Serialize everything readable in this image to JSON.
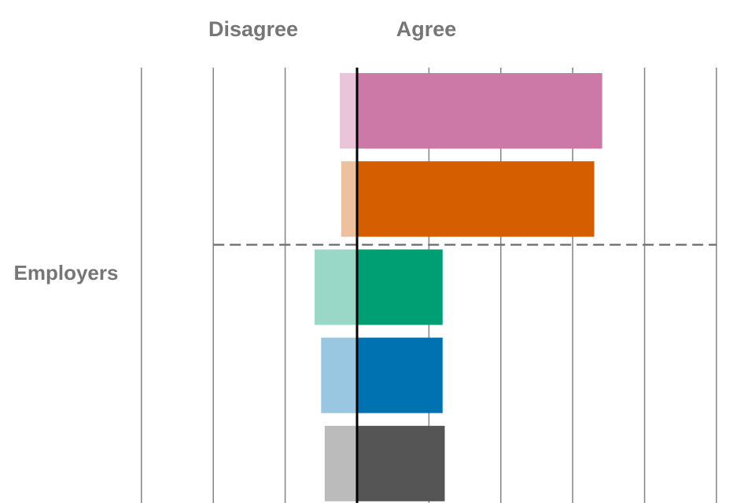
{
  "chart_data": {
    "type": "bar",
    "orientation": "horizontal",
    "stacked": "diverging",
    "header_labels": {
      "disagree": "Disagree",
      "agree": "Agree"
    },
    "category_label": "Employers",
    "grid": true,
    "group_divider_after_bar": 2,
    "bars": [
      {
        "disagree": 0.24,
        "agree": 3.41,
        "colors": {
          "agree": "#cc79a7",
          "disagree": "#eac5da"
        }
      },
      {
        "disagree": 0.22,
        "agree": 3.3,
        "colors": {
          "agree": "#d55e00",
          "disagree": "#eec19e"
        }
      },
      {
        "disagree": 0.59,
        "agree": 1.19,
        "colors": {
          "agree": "#009e73",
          "disagree": "#99d8c7"
        }
      },
      {
        "disagree": 0.5,
        "agree": 1.19,
        "colors": {
          "agree": "#0072b2",
          "disagree": "#99c6e0"
        }
      },
      {
        "disagree": 0.45,
        "agree": 1.22,
        "colors": {
          "agree": "#555555",
          "disagree": "#bbbbbb"
        }
      }
    ],
    "xlim": [
      -3,
      5
    ],
    "colors": {
      "gridline": "#8a8a8a",
      "zero_line": "#000000",
      "divider": "#6f6f6f",
      "text": "#767676"
    }
  }
}
